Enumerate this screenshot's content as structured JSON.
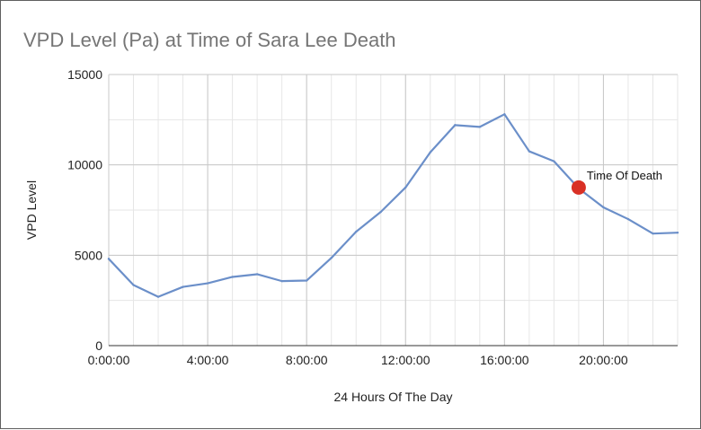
{
  "chart_data": {
    "type": "line",
    "title": "VPD Level (Pa) at Time of Sara Lee Death",
    "xlabel": "24 Hours Of The Day",
    "ylabel": "VPD Level",
    "x": [
      "0:00:00",
      "1:00:00",
      "2:00:00",
      "3:00:00",
      "4:00:00",
      "5:00:00",
      "6:00:00",
      "7:00:00",
      "8:00:00",
      "9:00:00",
      "10:00:00",
      "11:00:00",
      "12:00:00",
      "13:00:00",
      "14:00:00",
      "15:00:00",
      "16:00:00",
      "17:00:00",
      "18:00:00",
      "19:00:00",
      "20:00:00",
      "21:00:00",
      "22:00:00",
      "23:00:00"
    ],
    "x_tick_labels": [
      "0:00:00",
      "4:00:00",
      "8:00:00",
      "12:00:00",
      "16:00:00",
      "20:00:00"
    ],
    "x_tick_hours": [
      0,
      4,
      8,
      12,
      16,
      20
    ],
    "xlim_hours": [
      0,
      23
    ],
    "series": [
      {
        "values": [
          4800,
          3350,
          2700,
          3250,
          3450,
          3800,
          3950,
          3570,
          3600,
          4850,
          6300,
          7400,
          8750,
          10700,
          12200,
          12100,
          12800,
          10750,
          10200,
          8700,
          7650,
          7000,
          6200,
          6250
        ],
        "color": "#6b8fc9"
      }
    ],
    "ylim": [
      0,
      15000
    ],
    "y_ticks": [
      0,
      5000,
      10000,
      15000
    ],
    "y_tick_labels": [
      "0",
      "5000",
      "10000",
      "15000"
    ],
    "grid": true,
    "annotations": [
      {
        "label": "Time Of Death",
        "x_hour": 19,
        "y": 8750,
        "color": "#d93025"
      }
    ]
  }
}
